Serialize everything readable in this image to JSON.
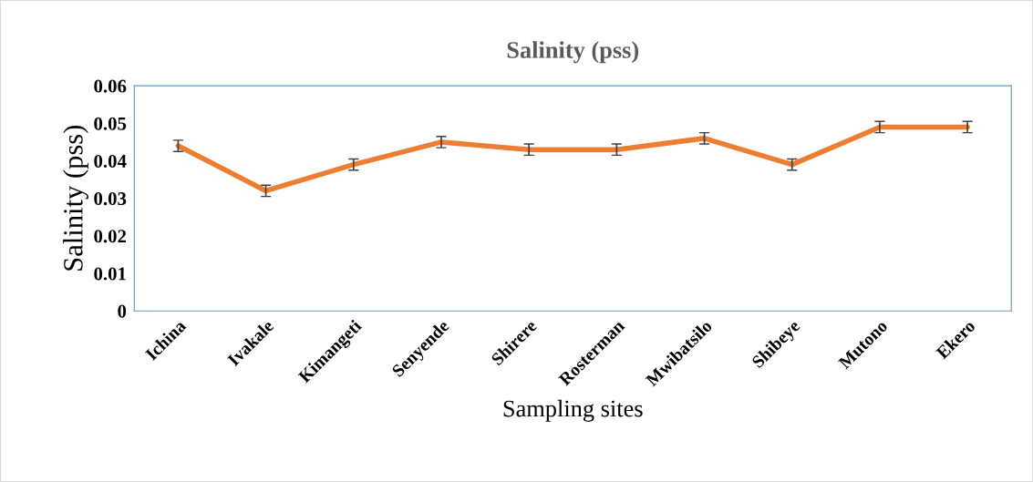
{
  "chart_data": {
    "type": "line",
    "title": "Salinity (pss)",
    "xlabel": "Sampling sites",
    "ylabel": "Salinity (pss)",
    "categories": [
      "Ichina",
      "Ivakale",
      "Kimangeti",
      "Senyende",
      "Shirere",
      "Rosterman",
      "Mwibatsilo",
      "Shibeye",
      "Mutono",
      "Ekero"
    ],
    "series": [
      {
        "color": "#ed7d31",
        "values": [
          0.044,
          0.032,
          0.039,
          0.045,
          0.043,
          0.043,
          0.046,
          0.039,
          0.049,
          0.049
        ],
        "errors": [
          0.0015,
          0.0015,
          0.0015,
          0.0015,
          0.0015,
          0.0015,
          0.0015,
          0.0015,
          0.0015,
          0.0015
        ]
      }
    ],
    "ylim": [
      0,
      0.06
    ],
    "yticks": [
      {
        "value": 0,
        "label": "0"
      },
      {
        "value": 0.01,
        "label": "0.01"
      },
      {
        "value": 0.02,
        "label": "0.02"
      },
      {
        "value": 0.03,
        "label": "0.03"
      },
      {
        "value": 0.04,
        "label": "0.04"
      },
      {
        "value": 0.05,
        "label": "0.05"
      },
      {
        "value": 0.06,
        "label": "0.06"
      }
    ],
    "grid": false,
    "legend": false,
    "marker": "none",
    "line_style": "solid"
  }
}
